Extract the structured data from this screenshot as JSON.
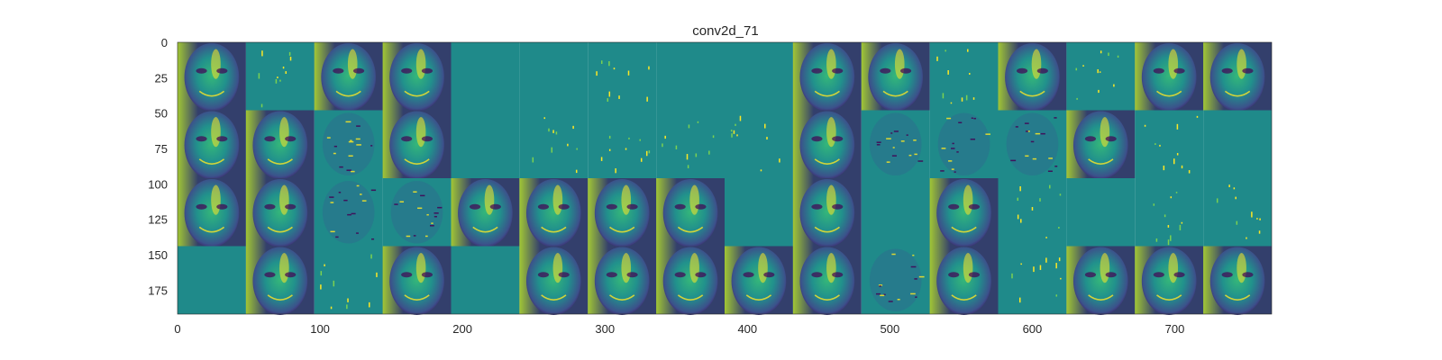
{
  "chart_data": {
    "type": "heatmap",
    "title": "conv2d_71",
    "xlabel": "",
    "ylabel": "",
    "xlim": [
      0,
      768
    ],
    "ylim": [
      192,
      0
    ],
    "x_ticks": [
      "0",
      "100",
      "200",
      "300",
      "400",
      "500",
      "600",
      "700"
    ],
    "x_tick_values": [
      0,
      100,
      200,
      300,
      400,
      500,
      600,
      700
    ],
    "y_ticks": [
      "0",
      "25",
      "50",
      "75",
      "100",
      "125",
      "150",
      "175"
    ],
    "y_tick_values": [
      0,
      25,
      50,
      75,
      100,
      125,
      150,
      175
    ],
    "grid": {
      "rows": 4,
      "cols": 16,
      "tile_size": 48
    },
    "colormap": "viridis",
    "tiles": [
      [
        "face",
        "sparse",
        "face",
        "face",
        "flat",
        "flat",
        "sparse",
        "flat",
        "flat",
        "face",
        "face",
        "sparse",
        "face",
        "sparse",
        "face",
        "face"
      ],
      [
        "face",
        "face",
        "edges",
        "face",
        "flat",
        "sparse",
        "sparse",
        "sparse",
        "sparse",
        "face",
        "edges",
        "edges",
        "edges",
        "face",
        "sparse",
        "flat"
      ],
      [
        "face",
        "face",
        "edges",
        "edges",
        "face",
        "face",
        "face",
        "face",
        "flat",
        "face",
        "flat",
        "face",
        "sparse",
        "flat",
        "sparse",
        "sparse"
      ],
      [
        "flat",
        "face",
        "sparse",
        "face",
        "flat",
        "face",
        "face",
        "face",
        "face",
        "face",
        "edges",
        "face",
        "sparse",
        "face",
        "face",
        "face"
      ]
    ]
  },
  "colors": {
    "background": "#1f8a8a",
    "dark": "#440154",
    "mid": "#21918c",
    "bright": "#fde725",
    "light_green": "#7ad151"
  }
}
